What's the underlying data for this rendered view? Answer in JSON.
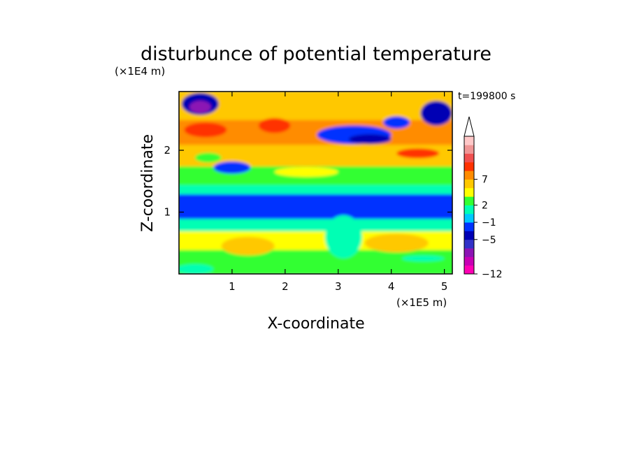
{
  "chart_data": {
    "type": "heatmap",
    "title": "disturbunce of potential temperature",
    "xlabel": "X-coordinate",
    "ylabel": "Z-coordinate",
    "x_unit": "(×1E5 m)",
    "y_unit": "(×1E4 m)",
    "time_label": "t=199800 s",
    "xlim": [
      0,
      5.15
    ],
    "ylim": [
      0,
      2.95
    ],
    "x_ticks": [
      "1",
      "2",
      "3",
      "4",
      "5"
    ],
    "y_ticks": [
      "1",
      "2"
    ],
    "colorbar": {
      "labels": [
        "7",
        "2",
        "−1",
        "−5",
        "−12"
      ],
      "colors": [
        "#ff00b4",
        "#c800b4",
        "#8c14b4",
        "#3232c8",
        "#0000b4",
        "#0032ff",
        "#00c8ff",
        "#00ffb4",
        "#32ff32",
        "#ffff00",
        "#ffc800",
        "#ff8c00",
        "#ff3200",
        "#f05050",
        "#f09696",
        "#ffc8c8"
      ],
      "extend_top": true
    },
    "field_layers": [
      {
        "zmin": 0.0,
        "zmax": 0.4,
        "level": 8
      },
      {
        "zmin": 0.4,
        "zmax": 0.7,
        "level": 9
      },
      {
        "zmin": 0.7,
        "zmax": 0.9,
        "level": 7
      },
      {
        "zmin": 0.9,
        "zmax": 1.3,
        "level": 5
      },
      {
        "zmin": 1.3,
        "zmax": 1.45,
        "level": 7
      },
      {
        "zmin": 1.45,
        "zmax": 1.75,
        "level": 8
      },
      {
        "zmin": 1.75,
        "zmax": 2.1,
        "level": 10
      },
      {
        "zmin": 2.1,
        "zmax": 2.5,
        "level": 11
      },
      {
        "zmin": 2.5,
        "zmax": 2.95,
        "level": 10
      }
    ],
    "features": [
      {
        "x": 0.4,
        "z": 2.75,
        "rx": 0.35,
        "rz": 0.18,
        "level": 4
      },
      {
        "x": 0.4,
        "z": 2.7,
        "rx": 0.2,
        "rz": 0.1,
        "level": 2
      },
      {
        "x": 0.5,
        "z": 2.33,
        "rx": 0.4,
        "rz": 0.12,
        "level": 12
      },
      {
        "x": 1.8,
        "z": 2.4,
        "rx": 0.3,
        "rz": 0.12,
        "level": 12
      },
      {
        "x": 3.3,
        "z": 2.25,
        "rx": 0.7,
        "rz": 0.15,
        "level": 5
      },
      {
        "x": 3.6,
        "z": 2.18,
        "rx": 0.4,
        "rz": 0.08,
        "level": 4
      },
      {
        "x": 4.1,
        "z": 2.45,
        "rx": 0.25,
        "rz": 0.1,
        "level": 5
      },
      {
        "x": 4.85,
        "z": 2.6,
        "rx": 0.3,
        "rz": 0.2,
        "level": 4
      },
      {
        "x": 1.0,
        "z": 1.72,
        "rx": 0.35,
        "rz": 0.1,
        "level": 5
      },
      {
        "x": 0.55,
        "z": 1.88,
        "rx": 0.25,
        "rz": 0.08,
        "level": 8
      },
      {
        "x": 2.4,
        "z": 1.65,
        "rx": 0.6,
        "rz": 0.08,
        "level": 9
      },
      {
        "x": 4.5,
        "z": 1.95,
        "rx": 0.4,
        "rz": 0.08,
        "level": 12
      },
      {
        "x": 3.1,
        "z": 0.6,
        "rx": 0.35,
        "rz": 0.35,
        "level": 7
      },
      {
        "x": 4.1,
        "z": 0.5,
        "rx": 0.6,
        "rz": 0.15,
        "level": 10
      },
      {
        "x": 1.3,
        "z": 0.45,
        "rx": 0.5,
        "rz": 0.15,
        "level": 10
      },
      {
        "x": 0.3,
        "z": 0.08,
        "rx": 0.35,
        "rz": 0.08,
        "level": 7
      },
      {
        "x": 4.6,
        "z": 0.25,
        "rx": 0.4,
        "rz": 0.05,
        "level": 7
      }
    ]
  }
}
